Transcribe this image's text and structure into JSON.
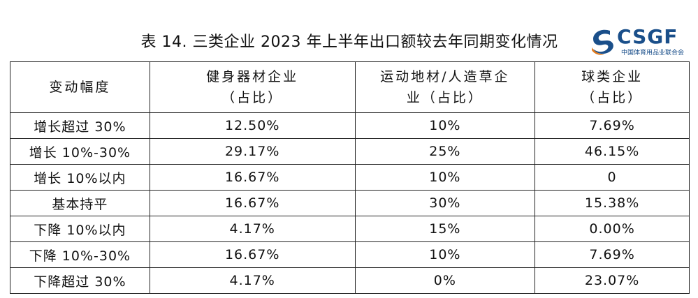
{
  "title": "表 14.  三类企业 2023 年上半年出口额较去年同期变化情况",
  "logo": {
    "name": "CSGF",
    "subtitle": "中国体育用品业联合会"
  },
  "table": {
    "headers": [
      {
        "line1": "变动幅度",
        "line2": ""
      },
      {
        "line1": "健身器材企业",
        "line2": "（占比）"
      },
      {
        "line1": "运动地材/人造草企",
        "line2": "业（占比）"
      },
      {
        "line1": "球类企业",
        "line2": "（占比）"
      }
    ],
    "rows": [
      [
        "增长超过 30%",
        "12.50%",
        "10%",
        "7.69%"
      ],
      [
        "增长 10%-30%",
        "29.17%",
        "25%",
        "46.15%"
      ],
      [
        "增长 10%以内",
        "16.67%",
        "10%",
        "0"
      ],
      [
        "基本持平",
        "16.67%",
        "30%",
        "15.38%"
      ],
      [
        "下降 10%以内",
        "4.17%",
        "15%",
        "0.00%"
      ],
      [
        "下降 10%-30%",
        "16.67%",
        "10%",
        "7.69%"
      ],
      [
        "下降超过 30%",
        "4.17%",
        "0%",
        "23.07%"
      ]
    ]
  }
}
